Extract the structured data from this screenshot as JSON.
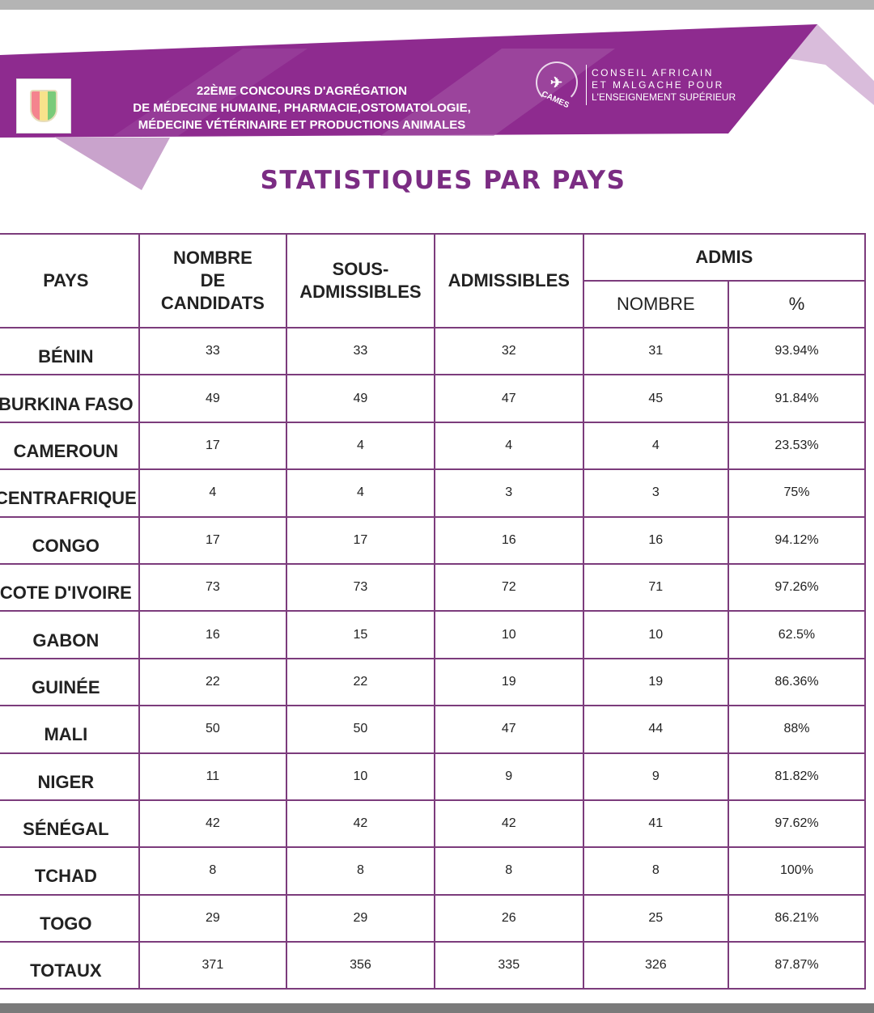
{
  "header": {
    "title_lines": [
      "22ÈME CONCOURS D'AGRÉGATION",
      "DE MÉDECINE HUMAINE, PHARMACIE,OSTOMATOLOGIE,",
      "MÉDECINE VÉTÉRINAIRE ET PRODUCTIONS ANIMALES"
    ],
    "org_logo_text": "CAMES",
    "org_lines": [
      "CONSEIL AFRICAIN",
      "ET MALGACHE POUR",
      "L'ENSEIGNEMENT SUPÉRIEUR"
    ]
  },
  "page_title": "STATISTIQUES PAR PAYS",
  "colors": {
    "accent": "#7b2c83",
    "banner": "#8e2b8f",
    "grid": "#7c3c7c"
  },
  "table": {
    "headers": {
      "pays": "PAYS",
      "candidats": [
        "NOMBRE",
        "DE",
        "CANDIDATS"
      ],
      "sous": [
        "SOUS-",
        "ADMISSIBLES"
      ],
      "admissibles": "ADMISSIBLES",
      "admis": "ADMIS",
      "admis_nombre": "NOMBRE",
      "admis_pct": "%"
    },
    "rows": [
      [
        "BÉNIN",
        "33",
        "33",
        "32",
        "31",
        "93.94%"
      ],
      [
        "BURKINA FASO",
        "49",
        "49",
        "47",
        "45",
        "91.84%"
      ],
      [
        "CAMEROUN",
        "17",
        "4",
        "4",
        "4",
        "23.53%"
      ],
      [
        "CENTRAFRIQUE",
        "4",
        "4",
        "3",
        "3",
        "75%"
      ],
      [
        "CONGO",
        "17",
        "17",
        "16",
        "16",
        "94.12%"
      ],
      [
        "COTE D'IVOIRE",
        "73",
        "73",
        "72",
        "71",
        "97.26%"
      ],
      [
        "GABON",
        "16",
        "15",
        "10",
        "10",
        "62.5%"
      ],
      [
        "GUINÉE",
        "22",
        "22",
        "19",
        "19",
        "86.36%"
      ],
      [
        "MALI",
        "50",
        "50",
        "47",
        "44",
        "88%"
      ],
      [
        "NIGER",
        "11",
        "10",
        "9",
        "9",
        "81.82%"
      ],
      [
        "SÉNÉGAL",
        "42",
        "42",
        "42",
        "41",
        "97.62%"
      ],
      [
        "TCHAD",
        "8",
        "8",
        "8",
        "8",
        "100%"
      ],
      [
        "TOGO",
        "29",
        "29",
        "26",
        "25",
        "86.21%"
      ],
      [
        "TOTAUX",
        "371",
        "356",
        "335",
        "326",
        "87.87%"
      ]
    ]
  }
}
